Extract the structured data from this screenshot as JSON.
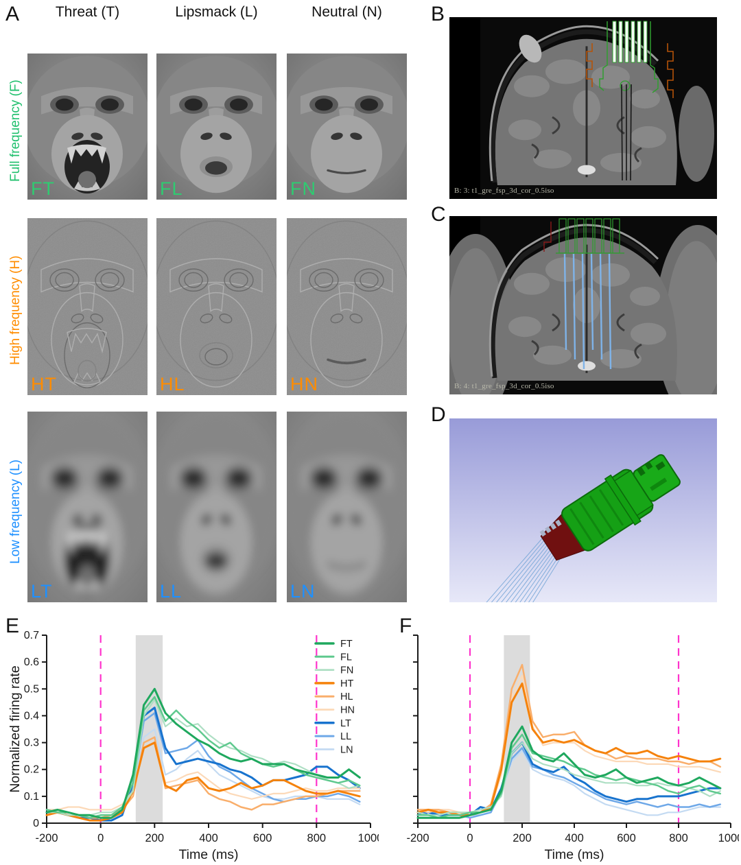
{
  "figure": {
    "background": "#ffffff",
    "accent_magenta": "#ff33cc",
    "stim_band_color": "#dcdcdc"
  },
  "panels": {
    "A": {
      "label": "A",
      "col_headers": [
        "Threat (T)",
        "Lipsmack (L)",
        "Neutral (N)"
      ],
      "row_labels": [
        {
          "text": "Full frequency (F)",
          "color": "#21c06e",
          "band": "full"
        },
        {
          "text": "High frequency (H)",
          "color": "#ff8c00",
          "band": "high"
        },
        {
          "text": "Low frequency (L)",
          "color": "#1e90ff",
          "band": "low"
        }
      ],
      "cells": [
        {
          "tag": "FT",
          "band": "full",
          "expression": "threat",
          "tag_color": "#2ecc71"
        },
        {
          "tag": "FL",
          "band": "full",
          "expression": "lipsmack",
          "tag_color": "#2ecc71"
        },
        {
          "tag": "FN",
          "band": "full",
          "expression": "neutral",
          "tag_color": "#2ecc71"
        },
        {
          "tag": "HT",
          "band": "high",
          "expression": "threat",
          "tag_color": "#ff8c00"
        },
        {
          "tag": "HL",
          "band": "high",
          "expression": "lipsmack",
          "tag_color": "#ff8c00"
        },
        {
          "tag": "HN",
          "band": "high",
          "expression": "neutral",
          "tag_color": "#ff8c00"
        },
        {
          "tag": "LT",
          "band": "low",
          "expression": "threat",
          "tag_color": "#1e90ff"
        },
        {
          "tag": "LL",
          "band": "low",
          "expression": "lipsmack",
          "tag_color": "#1e90ff"
        },
        {
          "tag": "LN",
          "band": "low",
          "expression": "neutral",
          "tag_color": "#1e90ff"
        }
      ]
    },
    "B": {
      "label": "B",
      "caption": "B: 3: t1_gre_fsp_3d_cor_0.5iso",
      "overlay": "green-electrode-array"
    },
    "C": {
      "label": "C",
      "caption": "B: 4: t1_gre_fsp_3d_cor_0.5iso",
      "overlay": "blue-electrode-tracks"
    },
    "D": {
      "label": "D",
      "content": "3d-microdrive-render"
    },
    "E": {
      "label": "E"
    },
    "F": {
      "label": "F"
    }
  },
  "chart_data": [
    {
      "panel": "E",
      "type": "line",
      "title": "",
      "xlabel": "Time (ms)",
      "ylabel": "Normalized firing rate",
      "xlim": [
        -200,
        1000
      ],
      "ylim": [
        0,
        0.7
      ],
      "xticks": [
        -200,
        0,
        200,
        400,
        600,
        800,
        1000
      ],
      "yticks": [
        0,
        0.1,
        0.2,
        0.3,
        0.4,
        0.5,
        0.6,
        0.7
      ],
      "show_ytick_labels": true,
      "grid": false,
      "legend": true,
      "legend_position": "upper-right",
      "stim_band": [
        130,
        230
      ],
      "event_lines": [
        0,
        800
      ],
      "x": [
        -200,
        -160,
        -120,
        -80,
        -40,
        0,
        40,
        80,
        120,
        160,
        200,
        240,
        280,
        320,
        360,
        400,
        440,
        480,
        520,
        560,
        600,
        640,
        680,
        720,
        760,
        800,
        840,
        880,
        920,
        960
      ],
      "series": [
        {
          "name": "FT",
          "color": "#1fa85e",
          "width": 3.0,
          "values": [
            0.04,
            0.05,
            0.04,
            0.03,
            0.03,
            0.02,
            0.02,
            0.05,
            0.18,
            0.44,
            0.5,
            0.41,
            0.37,
            0.34,
            0.31,
            0.29,
            0.26,
            0.24,
            0.23,
            0.24,
            0.22,
            0.22,
            0.22,
            0.2,
            0.19,
            0.18,
            0.17,
            0.17,
            0.2,
            0.17
          ]
        },
        {
          "name": "FL",
          "color": "#5fc98e",
          "width": 2.5,
          "values": [
            0.05,
            0.04,
            0.04,
            0.03,
            0.02,
            0.03,
            0.03,
            0.06,
            0.15,
            0.42,
            0.47,
            0.38,
            0.42,
            0.38,
            0.35,
            0.31,
            0.28,
            0.3,
            0.26,
            0.24,
            0.22,
            0.21,
            0.22,
            0.2,
            0.18,
            0.17,
            0.16,
            0.15,
            0.16,
            0.14
          ]
        },
        {
          "name": "FN",
          "color": "#aedfc4",
          "width": 2.2,
          "values": [
            0.04,
            0.04,
            0.03,
            0.03,
            0.03,
            0.04,
            0.04,
            0.06,
            0.12,
            0.4,
            0.46,
            0.36,
            0.39,
            0.36,
            0.37,
            0.33,
            0.3,
            0.28,
            0.27,
            0.25,
            0.24,
            0.22,
            0.23,
            0.22,
            0.2,
            0.18,
            0.16,
            0.15,
            0.13,
            0.14
          ]
        },
        {
          "name": "HT",
          "color": "#f5820b",
          "width": 3.0,
          "values": [
            0.03,
            0.04,
            0.03,
            0.02,
            0.01,
            0.01,
            0.02,
            0.04,
            0.12,
            0.28,
            0.3,
            0.14,
            0.12,
            0.16,
            0.17,
            0.13,
            0.12,
            0.13,
            0.15,
            0.13,
            0.14,
            0.16,
            0.16,
            0.14,
            0.12,
            0.11,
            0.11,
            0.12,
            0.11,
            0.1
          ]
        },
        {
          "name": "HL",
          "color": "#f9ae6b",
          "width": 2.5,
          "values": [
            0.04,
            0.04,
            0.04,
            0.03,
            0.02,
            0.02,
            0.03,
            0.05,
            0.1,
            0.3,
            0.32,
            0.13,
            0.14,
            0.15,
            0.16,
            0.11,
            0.09,
            0.08,
            0.06,
            0.05,
            0.07,
            0.07,
            0.08,
            0.09,
            0.1,
            0.1,
            0.11,
            0.12,
            0.12,
            0.12
          ]
        },
        {
          "name": "HN",
          "color": "#fcd9b8",
          "width": 2.2,
          "values": [
            0.05,
            0.05,
            0.06,
            0.06,
            0.05,
            0.05,
            0.05,
            0.07,
            0.12,
            0.28,
            0.3,
            0.15,
            0.16,
            0.18,
            0.19,
            0.16,
            0.13,
            0.11,
            0.1,
            0.09,
            0.1,
            0.11,
            0.11,
            0.12,
            0.13,
            0.12,
            0.12,
            0.13,
            0.13,
            0.13
          ]
        },
        {
          "name": "LT",
          "color": "#1873ce",
          "width": 3.0,
          "values": [
            0.04,
            0.04,
            0.03,
            0.02,
            0.02,
            0.01,
            0.01,
            0.03,
            0.15,
            0.4,
            0.43,
            0.28,
            0.22,
            0.23,
            0.24,
            0.23,
            0.22,
            0.2,
            0.19,
            0.17,
            0.14,
            0.16,
            0.16,
            0.17,
            0.18,
            0.21,
            0.21,
            0.18,
            0.16,
            0.13
          ]
        },
        {
          "name": "LL",
          "color": "#6ea8e8",
          "width": 2.5,
          "values": [
            0.05,
            0.04,
            0.04,
            0.03,
            0.02,
            0.02,
            0.02,
            0.04,
            0.13,
            0.38,
            0.41,
            0.26,
            0.27,
            0.28,
            0.31,
            0.25,
            0.21,
            0.19,
            0.16,
            0.13,
            0.11,
            0.09,
            0.08,
            0.09,
            0.09,
            0.1,
            0.1,
            0.11,
            0.1,
            0.08
          ]
        },
        {
          "name": "LN",
          "color": "#c3daf2",
          "width": 2.2,
          "values": [
            0.05,
            0.05,
            0.04,
            0.03,
            0.03,
            0.02,
            0.03,
            0.04,
            0.12,
            0.32,
            0.35,
            0.18,
            0.2,
            0.24,
            0.27,
            0.22,
            0.18,
            0.16,
            0.14,
            0.12,
            0.1,
            0.09,
            0.09,
            0.1,
            0.1,
            0.1,
            0.09,
            0.09,
            0.09,
            0.07
          ]
        }
      ]
    },
    {
      "panel": "F",
      "type": "line",
      "title": "",
      "xlabel": "Time (ms)",
      "ylabel": "",
      "xlim": [
        -200,
        1000
      ],
      "ylim": [
        0,
        0.7
      ],
      "xticks": [
        -200,
        0,
        200,
        400,
        600,
        800,
        1000
      ],
      "yticks": [
        0,
        0.1,
        0.2,
        0.3,
        0.4,
        0.5,
        0.6,
        0.7
      ],
      "show_ytick_labels": false,
      "grid": false,
      "legend": false,
      "legend_position": "none",
      "stim_band": [
        130,
        230
      ],
      "event_lines": [
        0,
        800
      ],
      "x": [
        -200,
        -160,
        -120,
        -80,
        -40,
        0,
        40,
        80,
        120,
        160,
        200,
        240,
        280,
        320,
        360,
        400,
        440,
        480,
        520,
        560,
        600,
        640,
        680,
        720,
        760,
        800,
        840,
        880,
        920,
        960
      ],
      "series": [
        {
          "name": "FT",
          "color": "#1fa85e",
          "width": 3.0,
          "values": [
            0.02,
            0.02,
            0.02,
            0.02,
            0.02,
            0.03,
            0.04,
            0.05,
            0.12,
            0.3,
            0.36,
            0.27,
            0.24,
            0.23,
            0.26,
            0.22,
            0.18,
            0.17,
            0.18,
            0.2,
            0.17,
            0.15,
            0.16,
            0.17,
            0.15,
            0.14,
            0.15,
            0.17,
            0.15,
            0.13
          ]
        },
        {
          "name": "FL",
          "color": "#5fc98e",
          "width": 2.5,
          "values": [
            0.03,
            0.03,
            0.02,
            0.03,
            0.03,
            0.04,
            0.04,
            0.05,
            0.11,
            0.28,
            0.33,
            0.26,
            0.25,
            0.24,
            0.23,
            0.21,
            0.2,
            0.18,
            0.17,
            0.16,
            0.17,
            0.16,
            0.15,
            0.14,
            0.12,
            0.11,
            0.13,
            0.14,
            0.12,
            0.11
          ]
        },
        {
          "name": "FN",
          "color": "#aedfc4",
          "width": 2.2,
          "values": [
            0.04,
            0.03,
            0.03,
            0.04,
            0.04,
            0.04,
            0.05,
            0.06,
            0.1,
            0.26,
            0.3,
            0.24,
            0.22,
            0.21,
            0.2,
            0.18,
            0.17,
            0.16,
            0.15,
            0.15,
            0.15,
            0.14,
            0.14,
            0.15,
            0.14,
            0.14,
            0.13,
            0.12,
            0.1,
            0.12
          ]
        },
        {
          "name": "HT",
          "color": "#f5820b",
          "width": 3.0,
          "values": [
            0.04,
            0.05,
            0.04,
            0.04,
            0.03,
            0.03,
            0.04,
            0.06,
            0.2,
            0.45,
            0.52,
            0.35,
            0.3,
            0.31,
            0.3,
            0.31,
            0.29,
            0.27,
            0.26,
            0.28,
            0.26,
            0.26,
            0.27,
            0.25,
            0.24,
            0.25,
            0.24,
            0.23,
            0.23,
            0.24
          ]
        },
        {
          "name": "HL",
          "color": "#f9ae6b",
          "width": 2.5,
          "values": [
            0.05,
            0.05,
            0.05,
            0.04,
            0.04,
            0.03,
            0.04,
            0.07,
            0.22,
            0.5,
            0.59,
            0.38,
            0.32,
            0.33,
            0.33,
            0.34,
            0.29,
            0.27,
            0.26,
            0.24,
            0.25,
            0.24,
            0.24,
            0.24,
            0.23,
            0.23,
            0.22,
            0.23,
            0.23,
            0.21
          ]
        },
        {
          "name": "HN",
          "color": "#fcd9b8",
          "width": 2.2,
          "values": [
            0.05,
            0.04,
            0.05,
            0.05,
            0.04,
            0.04,
            0.04,
            0.06,
            0.18,
            0.47,
            0.55,
            0.36,
            0.29,
            0.3,
            0.3,
            0.3,
            0.27,
            0.25,
            0.24,
            0.23,
            0.23,
            0.23,
            0.22,
            0.22,
            0.22,
            0.21,
            0.21,
            0.21,
            0.2,
            0.19
          ]
        },
        {
          "name": "LT",
          "color": "#1873ce",
          "width": 3.0,
          "values": [
            0.03,
            0.04,
            0.03,
            0.03,
            0.03,
            0.03,
            0.06,
            0.05,
            0.13,
            0.26,
            0.3,
            0.22,
            0.2,
            0.19,
            0.21,
            0.17,
            0.15,
            0.12,
            0.1,
            0.09,
            0.08,
            0.09,
            0.09,
            0.1,
            0.1,
            0.1,
            0.11,
            0.12,
            0.13,
            0.13
          ]
        },
        {
          "name": "LL",
          "color": "#6ea8e8",
          "width": 2.5,
          "values": [
            0.04,
            0.04,
            0.04,
            0.03,
            0.03,
            0.02,
            0.03,
            0.04,
            0.12,
            0.24,
            0.28,
            0.21,
            0.2,
            0.18,
            0.17,
            0.15,
            0.13,
            0.11,
            0.09,
            0.08,
            0.07,
            0.08,
            0.07,
            0.06,
            0.07,
            0.06,
            0.06,
            0.07,
            0.06,
            0.07
          ]
        },
        {
          "name": "LN",
          "color": "#c3daf2",
          "width": 2.2,
          "values": [
            0.04,
            0.04,
            0.03,
            0.04,
            0.03,
            0.03,
            0.03,
            0.04,
            0.11,
            0.23,
            0.27,
            0.2,
            0.18,
            0.17,
            0.16,
            0.14,
            0.11,
            0.09,
            0.07,
            0.06,
            0.05,
            0.04,
            0.03,
            0.03,
            0.04,
            0.04,
            0.05,
            0.06,
            0.06,
            0.06
          ]
        }
      ]
    }
  ]
}
